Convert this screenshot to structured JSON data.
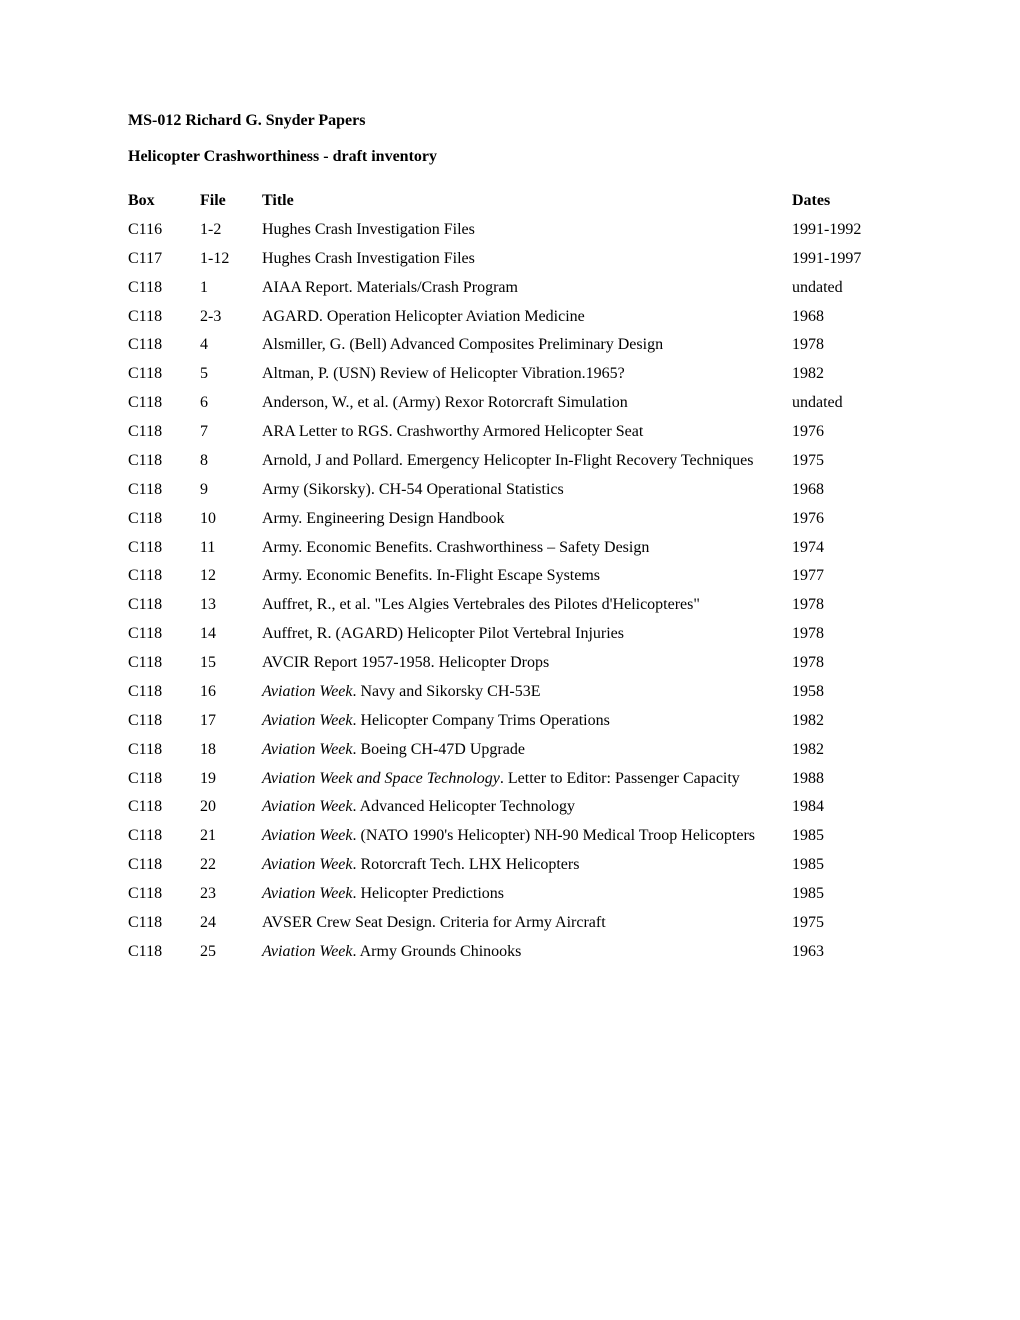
{
  "heading": "MS-012 Richard G. Snyder Papers",
  "subheading": "Helicopter Crashworthiness - draft inventory",
  "columns": {
    "box": "Box",
    "file": "File",
    "title": "Title",
    "dates": "Dates"
  },
  "rows": [
    {
      "box": "C116",
      "file": "1-2",
      "title_html": "Hughes Crash Investigation Files",
      "dates": "1991-1992"
    },
    {
      "box": "C117",
      "file": "1-12",
      "title_html": "Hughes Crash Investigation Files",
      "dates": "1991-1997"
    },
    {
      "box": "C118",
      "file": "1",
      "title_html": "AIAA Report.  Materials/Crash Program",
      "dates": "undated"
    },
    {
      "box": "C118",
      "file": "2-3",
      "title_html": "AGARD.  Operation Helicopter Aviation Medicine",
      "dates": "1968"
    },
    {
      "box": "C118",
      "file": "4",
      "title_html": "Alsmiller, G.  (Bell)  Advanced Composites Preliminary Design",
      "dates": "1978"
    },
    {
      "box": "C118",
      "file": "5",
      "title_html": "Altman, P.  (USN)  Review of Helicopter Vibration.1965?",
      "dates": "1982"
    },
    {
      "box": "C118",
      "file": "6",
      "title_html": "Anderson, W., et al.  (Army)  Rexor Rotorcraft Simulation",
      "dates": "undated"
    },
    {
      "box": "C118",
      "file": "7",
      "title_html": "ARA Letter to RGS.  Crashworthy Armored Helicopter Seat",
      "dates": "1976"
    },
    {
      "box": "C118",
      "file": "8",
      "title_html": "Arnold, J and Pollard.  Emergency Helicopter In-Flight Recovery Techniques",
      "dates": "1975"
    },
    {
      "box": "C118",
      "file": "9",
      "title_html": "Army (Sikorsky).  CH-54 Operational Statistics",
      "dates": "1968"
    },
    {
      "box": "C118",
      "file": "10",
      "title_html": "Army.  Engineering Design Handbook",
      "dates": "1976"
    },
    {
      "box": "C118",
      "file": "11",
      "title_html": "Army.  Economic Benefits.  Crashworthiness – Safety Design",
      "dates": "1974"
    },
    {
      "box": "C118",
      "file": "12",
      "title_html": "Army.  Economic Benefits.  In-Flight Escape Systems",
      "dates": "1977"
    },
    {
      "box": "C118",
      "file": "13",
      "title_html": "Auffret, R., et al.  \"Les Algies Vertebrales des Pilotes d'Helicopteres\"",
      "dates": "1978"
    },
    {
      "box": "C118",
      "file": "14",
      "title_html": "Auffret, R.  (AGARD)  Helicopter Pilot Vertebral Injuries",
      "dates": "1978"
    },
    {
      "box": "C118",
      "file": "15",
      "title_html": "AVCIR Report 1957-1958.  Helicopter Drops",
      "dates": "1978"
    },
    {
      "box": "C118",
      "file": "16",
      "title_html": "<span class=\"italic\">Aviation Week</span>.  Navy and Sikorsky CH-53E",
      "dates": "1958"
    },
    {
      "box": "C118",
      "file": "17",
      "title_html": "<span class=\"italic\">Aviation Week</span>.  Helicopter Company Trims Operations",
      "dates": "1982"
    },
    {
      "box": "C118",
      "file": "18",
      "title_html": "<span class=\"italic\">Aviation Week</span>.  Boeing CH-47D Upgrade",
      "dates": "1982"
    },
    {
      "box": "C118",
      "file": "19",
      "title_html": "<span class=\"italic\">Aviation Week and Space Technology</span>.  Letter to Editor:  Passenger Capacity",
      "dates": "1988"
    },
    {
      "box": "C118",
      "file": "20",
      "title_html": "<span class=\"italic\">Aviation Week</span>.  Advanced Helicopter Technology",
      "dates": "1984"
    },
    {
      "box": "C118",
      "file": "21",
      "title_html": "<span class=\"italic\">Aviation Week</span>.  (NATO 1990's Helicopter)  NH-90 Medical Troop Helicopters",
      "dates": "1985"
    },
    {
      "box": "C118",
      "file": "22",
      "title_html": "<span class=\"italic\">Aviation Week</span>.  Rotorcraft Tech.  LHX Helicopters",
      "dates": "1985"
    },
    {
      "box": "C118",
      "file": "23",
      "title_html": "<span class=\"italic\">Aviation Week</span>.  Helicopter Predictions",
      "dates": "1985"
    },
    {
      "box": "C118",
      "file": "24",
      "title_html": "AVSER Crew Seat Design. Criteria for Army Aircraft",
      "dates": "1975"
    },
    {
      "box": "C118",
      "file": "25",
      "title_html": "<span class=\"italic\">Aviation Week</span>. Army Grounds Chinooks",
      "dates": "1963"
    }
  ]
}
